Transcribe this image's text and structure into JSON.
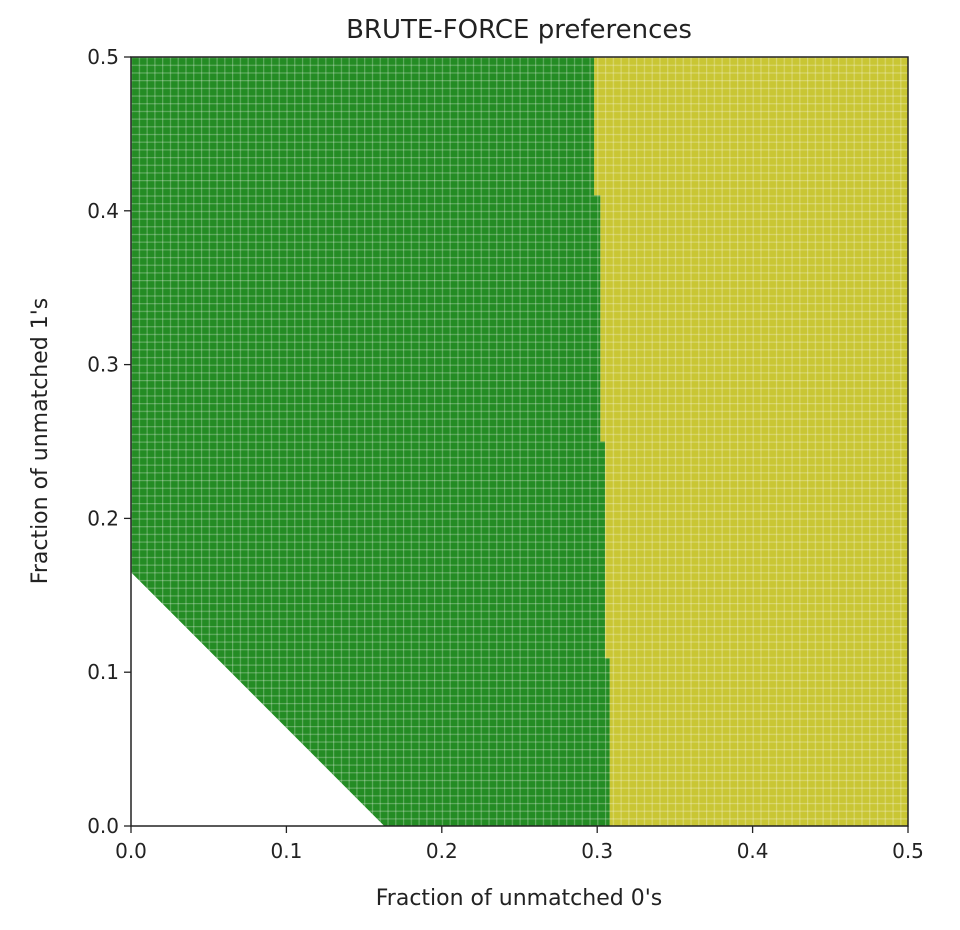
{
  "chart_data": {
    "type": "heatmap",
    "title": "BRUTE-FORCE preferences",
    "xlabel": "Fraction of unmatched 0's",
    "ylabel": "Fraction of unmatched 1's",
    "xlim": [
      0,
      0.5
    ],
    "ylim": [
      0,
      0.5
    ],
    "xticks": [
      "0.0",
      "0.1",
      "0.2",
      "0.3",
      "0.4",
      "0.5"
    ],
    "yticks": [
      "0.0",
      "0.1",
      "0.2",
      "0.3",
      "0.4",
      "0.5"
    ],
    "grid_resolution": 100,
    "regions": [
      {
        "name": "empty",
        "color": "#ffffff",
        "rule": "x + y < 0.165"
      },
      {
        "name": "green",
        "color": "#248c24",
        "rule": "x < boundary(y)"
      },
      {
        "name": "yellow",
        "color": "#c9c634",
        "rule": "x >= boundary(y)"
      }
    ],
    "empty_line": {
      "x_intercept": 0.163,
      "y_intercept": 0.165
    },
    "boundary_steps": [
      {
        "y_from": 0.0,
        "y_to": 0.109,
        "x": 0.308
      },
      {
        "y_from": 0.109,
        "y_to": 0.25,
        "x": 0.305
      },
      {
        "y_from": 0.25,
        "y_to": 0.41,
        "x": 0.302
      },
      {
        "y_from": 0.41,
        "y_to": 0.5,
        "x": 0.298
      }
    ]
  }
}
